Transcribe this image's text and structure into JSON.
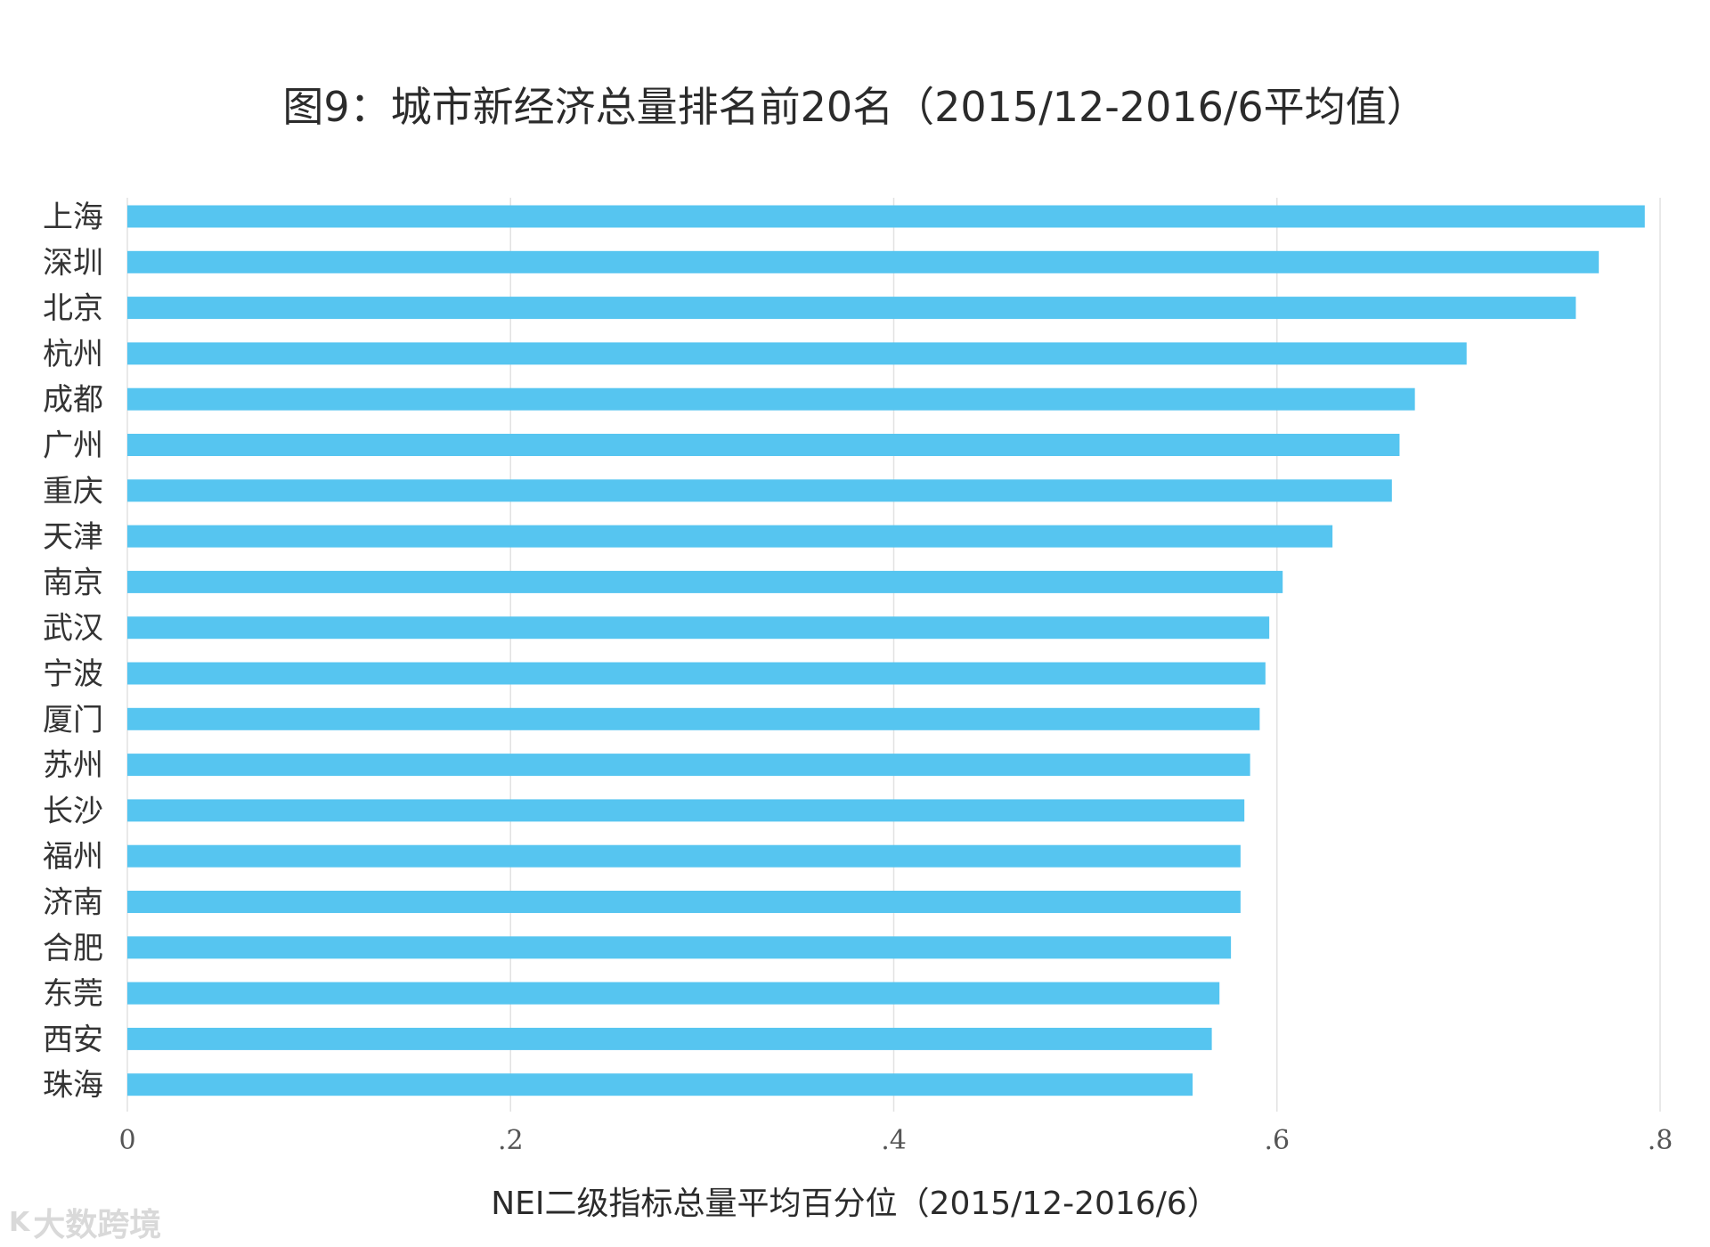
{
  "chart_data": {
    "type": "bar",
    "orientation": "horizontal",
    "title": "图9：城市新经济总量排名前20名（2015/12-2016/6平均值）",
    "xlabel": "NEI二级指标总量平均百分位（2015/12-2016/6）",
    "ylabel": "",
    "xlim": [
      0,
      0.8
    ],
    "xticks": [
      "0",
      ".2",
      ".4",
      ".6",
      ".8"
    ],
    "grid": "vertical",
    "categories": [
      "上海",
      "深圳",
      "北京",
      "杭州",
      "成都",
      "广州",
      "重庆",
      "天津",
      "南京",
      "武汉",
      "宁波",
      "厦门",
      "苏州",
      "长沙",
      "福州",
      "济南",
      "合肥",
      "东莞",
      "西安",
      "珠海"
    ],
    "series": [
      {
        "values": [
          0.792,
          0.768,
          0.756,
          0.699,
          0.672,
          0.664,
          0.66,
          0.629,
          0.603,
          0.596,
          0.594,
          0.591,
          0.586,
          0.583,
          0.581,
          0.581,
          0.576,
          0.57,
          0.566,
          0.556
        ]
      }
    ],
    "bar_color": "#56C5F0",
    "grid_color": "#e2e2e2"
  },
  "watermark": {
    "logo": "K",
    "text": "大数跨境"
  }
}
